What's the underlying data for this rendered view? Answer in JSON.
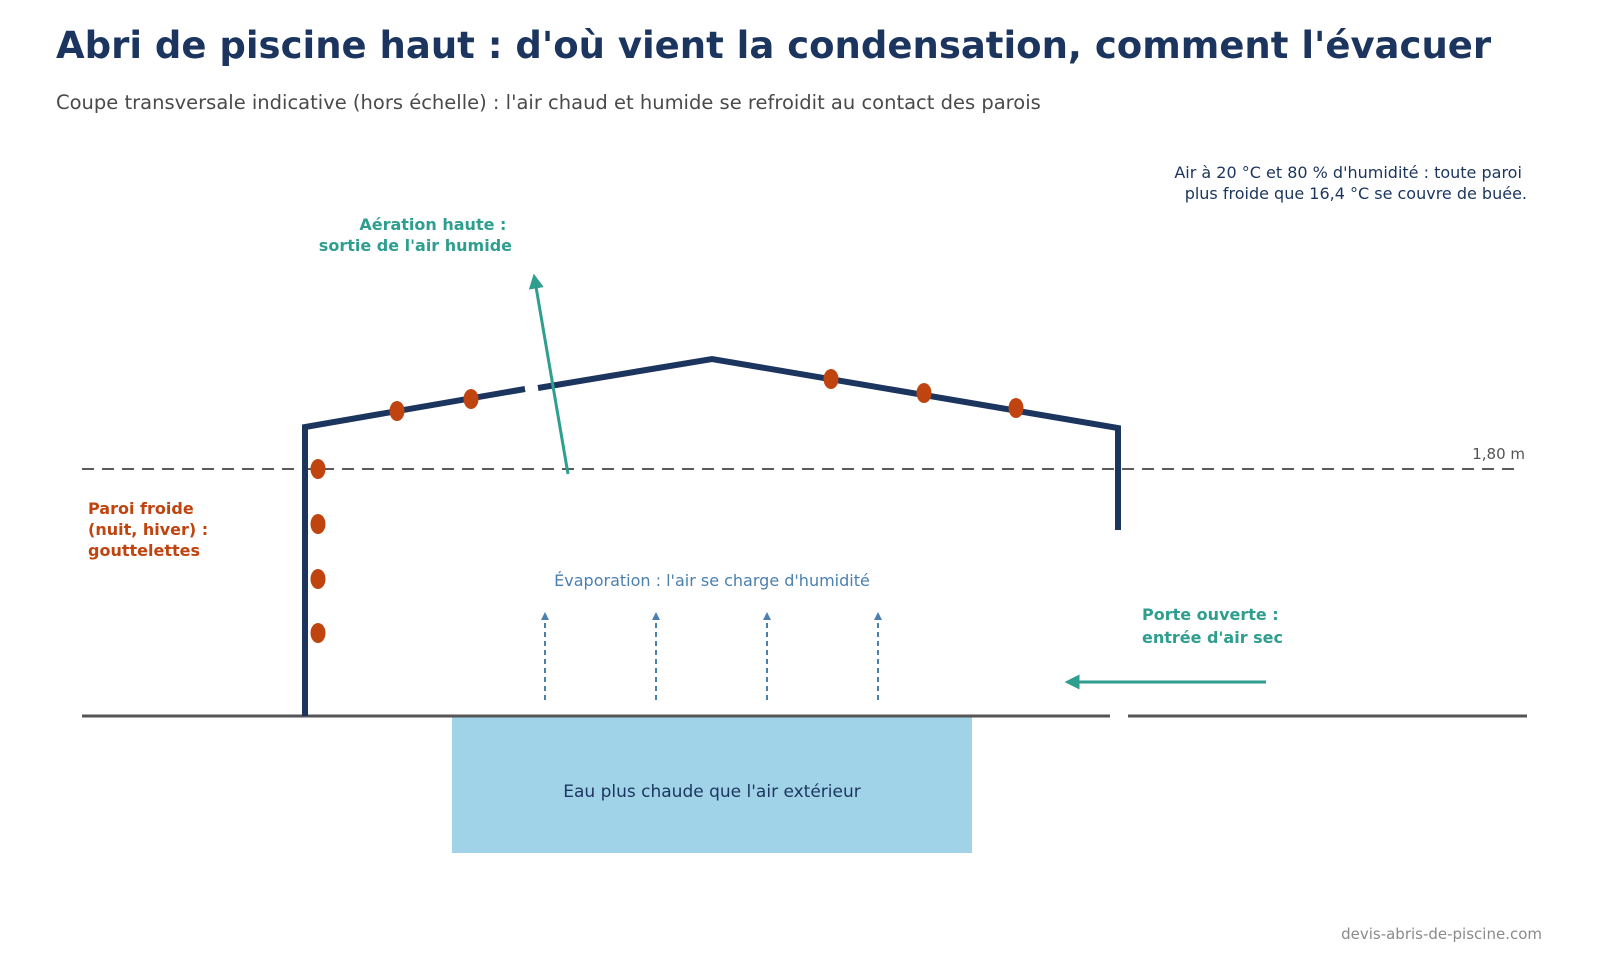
{
  "title": "Abri de piscine haut : d'où vient la condensation, comment l'évacuer",
  "subtitle": "Coupe transversale indicative (hors échelle) : l'air chaud et humide se refroidit au contact des parois",
  "note": {
    "line1": "Air à 20 °C et 80 % d'humidité : toute paroi",
    "line2": "plus froide que 16,4 °C se couvre de buée."
  },
  "ventilation": {
    "line1": "Aération haute :",
    "line2": "sortie de l'air humide"
  },
  "cold_wall": {
    "line1": "Paroi froide",
    "line2": "(nuit, hiver) :",
    "line3": "gouttelettes"
  },
  "door": {
    "line1": "Porte ouverte :",
    "line2": "entrée d'air sec"
  },
  "evaporation_label": "Évaporation : l'air se charge d'humidité",
  "height_marker": "1,80 m",
  "pool_label": "Eau plus chaude que l'air extérieur",
  "footer": "devis-abris-de-piscine.com",
  "colors": {
    "structure": "#1b355e",
    "droplet": "#c0440f",
    "airflow": "#2e9e8f",
    "evaporation": "#4a7fb0",
    "water": "#a0d3e8",
    "ground": "#555555"
  }
}
